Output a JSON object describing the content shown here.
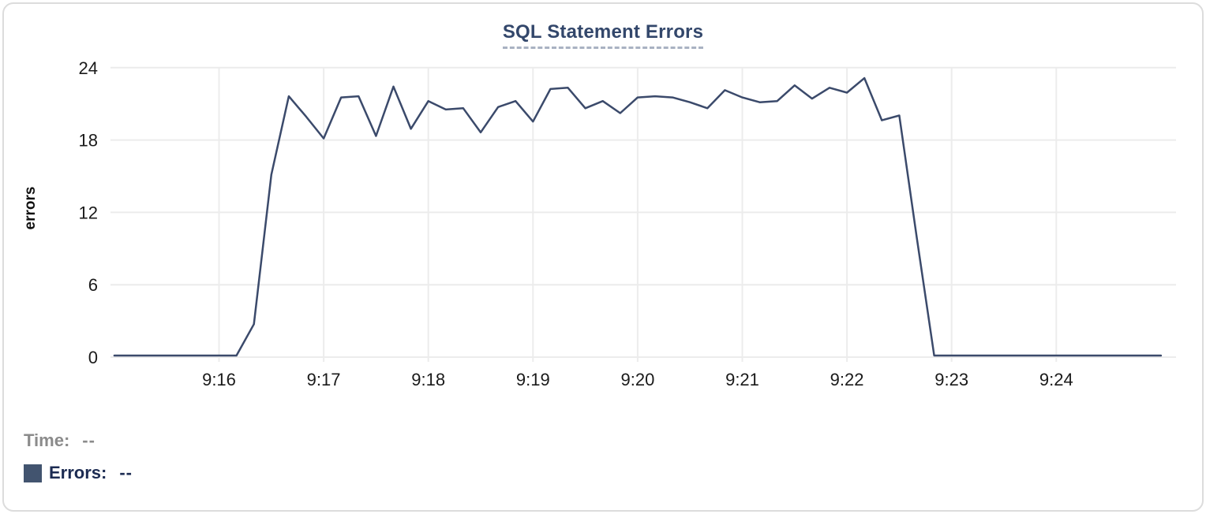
{
  "chart": {
    "title": "SQL Statement Errors",
    "ylabel": "errors"
  },
  "footer": {
    "time_label": "Time:",
    "time_value": "--",
    "errors_label": "Errors:",
    "errors_value": "--"
  },
  "colors": {
    "line": "#3b4a6b",
    "grid": "#ececec",
    "title": "#33476b",
    "title_underline": "#a9b2c2",
    "tick_label": "#1a1a1a",
    "time_label": "#8b8b8b",
    "errors_label": "#1c2b52",
    "swatch": "#42546f",
    "card_border": "#dcdcdc"
  },
  "chart_data": {
    "type": "line",
    "title": "SQL Statement Errors",
    "xlabel": "",
    "ylabel": "errors",
    "ylim": [
      0,
      24
    ],
    "y_ticks": [
      0,
      6,
      12,
      18,
      24
    ],
    "x_ticks": [
      "9:16",
      "9:17",
      "9:18",
      "9:19",
      "9:20",
      "9:21",
      "9:22",
      "9:23",
      "9:24"
    ],
    "x_range": [
      "9:15:00",
      "9:25:00"
    ],
    "grid": true,
    "legend_position": "bottom-left",
    "series": [
      {
        "name": "Errors",
        "times": [
          "9:15:00",
          "9:15:10",
          "9:15:20",
          "9:15:30",
          "9:15:40",
          "9:15:50",
          "9:16:00",
          "9:16:10",
          "9:16:20",
          "9:16:30",
          "9:16:40",
          "9:16:50",
          "9:17:00",
          "9:17:10",
          "9:17:20",
          "9:17:30",
          "9:17:40",
          "9:17:50",
          "9:18:00",
          "9:18:10",
          "9:18:20",
          "9:18:30",
          "9:18:40",
          "9:18:50",
          "9:19:00",
          "9:19:10",
          "9:19:20",
          "9:19:30",
          "9:19:40",
          "9:19:50",
          "9:20:00",
          "9:20:10",
          "9:20:20",
          "9:20:30",
          "9:20:40",
          "9:20:50",
          "9:21:00",
          "9:21:10",
          "9:21:20",
          "9:21:30",
          "9:21:40",
          "9:21:50",
          "9:22:00",
          "9:22:10",
          "9:22:20",
          "9:22:30",
          "9:22:40",
          "9:22:50",
          "9:23:00",
          "9:23:10",
          "9:23:20",
          "9:23:30",
          "9:23:40",
          "9:23:50",
          "9:24:00",
          "9:24:10",
          "9:24:20",
          "9:24:30",
          "9:24:40",
          "9:24:50",
          "9:25:00"
        ],
        "values": [
          0,
          0,
          0,
          0,
          0,
          0,
          0,
          0,
          2.6,
          15,
          21.5,
          19.8,
          18,
          21.4,
          21.5,
          18.2,
          22.3,
          18.8,
          21.1,
          20.4,
          20.5,
          18.5,
          20.6,
          21.1,
          19.4,
          22.1,
          22.2,
          20.5,
          21.1,
          20.1,
          21.4,
          21.5,
          21.4,
          21,
          20.5,
          22,
          21.4,
          21,
          21.1,
          22.4,
          21.3,
          22.2,
          21.8,
          23,
          19.5,
          19.9,
          9.8,
          0,
          0,
          0,
          0,
          0,
          0,
          0,
          0,
          0,
          0,
          0,
          0,
          0,
          0
        ]
      }
    ]
  }
}
